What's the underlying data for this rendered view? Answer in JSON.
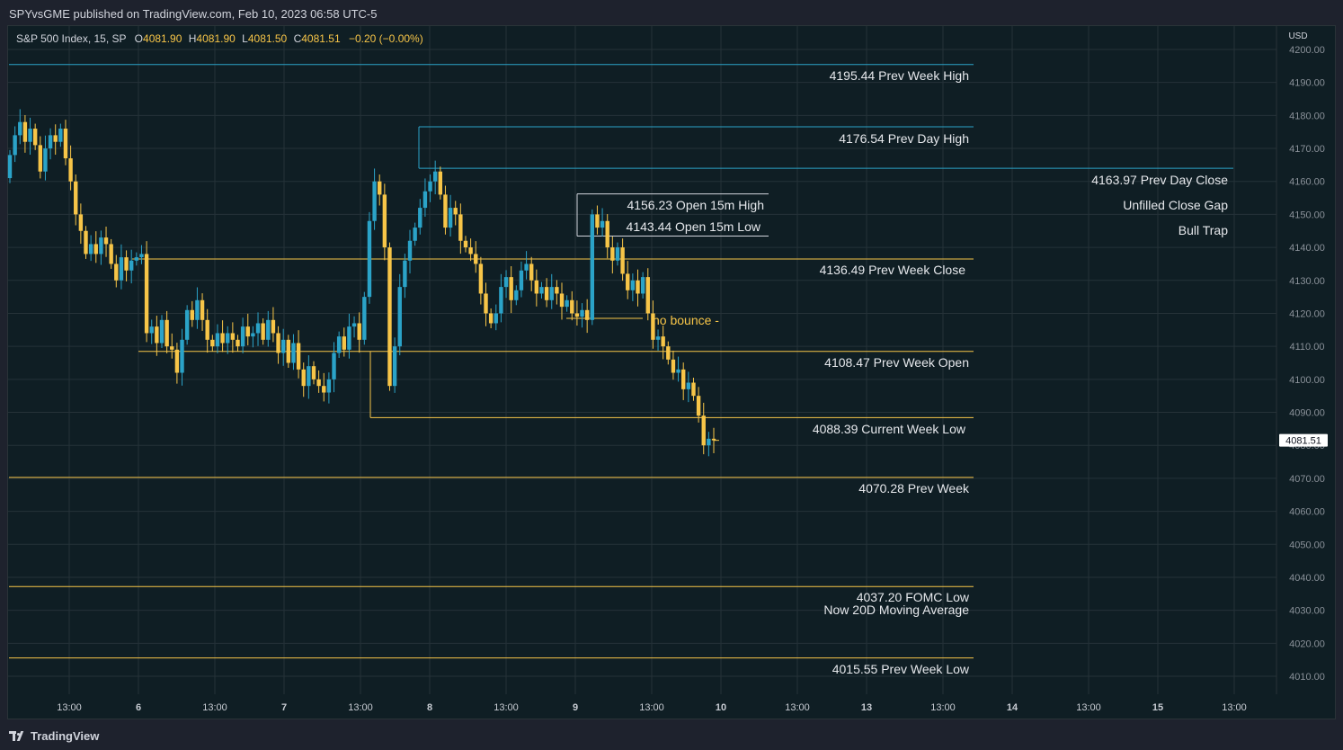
{
  "header": {
    "published": "SPYvsGME published on TradingView.com, Feb 10, 2023 06:58 UTC-5"
  },
  "legend": {
    "symbol": "S&P 500 Index, 15, SP",
    "o_label": "O",
    "o_value": "4081.90",
    "h_label": "H",
    "h_value": "4081.90",
    "l_label": "L",
    "l_value": "4081.50",
    "c_label": "C",
    "c_value": "4081.51",
    "change": "−0.20 (−0.00%)"
  },
  "footer": {
    "brand": "TradingView"
  },
  "colors": {
    "up": "#2ba3c8",
    "down": "#f7c548",
    "yellow_line": "#f7c548",
    "blue_line": "#2ba3c8",
    "grid": "#253238"
  },
  "chart_data": {
    "type": "candlestick",
    "currency": "USD",
    "last_price": "4081.51",
    "ylim": [
      4003,
      4202
    ],
    "y_ticks": [
      "4200.00",
      "4190.00",
      "4180.00",
      "4170.00",
      "4160.00",
      "4150.00",
      "4140.00",
      "4130.00",
      "4120.00",
      "4110.00",
      "4100.00",
      "4090.00",
      "4080.00",
      "4070.00",
      "4060.00",
      "4050.00",
      "4040.00",
      "4030.00",
      "4020.00",
      "4010.00"
    ],
    "x_ticks": [
      "13:00",
      "6",
      "13:00",
      "7",
      "13:00",
      "8",
      "13:00",
      "9",
      "13:00",
      "10",
      "13:00",
      "13",
      "13:00",
      "14",
      "13:00",
      "15",
      "13:00"
    ],
    "levels": [
      {
        "price": 4195.44,
        "label": "4195.44 Prev Week High",
        "color": "blue"
      },
      {
        "price": 4176.54,
        "label": "4176.54 Prev Day High",
        "color": "blue"
      },
      {
        "price": 4163.97,
        "label": "4163.97 Prev Day Close",
        "color": "blue"
      },
      {
        "price": 4156.23,
        "label": "4156.23 Open 15m High",
        "color": "white"
      },
      {
        "price": 4143.44,
        "label": "4143.44 Open 15m Low",
        "color": "white"
      },
      {
        "price": 4136.49,
        "label": "4136.49 Prev Week Close",
        "color": "yellow"
      },
      {
        "price": 4108.47,
        "label": "4108.47 Prev Week Open",
        "color": "yellow"
      },
      {
        "price": 4088.39,
        "label": "4088.39 Current Week Low",
        "color": "yellow"
      },
      {
        "price": 4070.28,
        "label": "4070.28 Prev Week",
        "color": "yellow"
      },
      {
        "price": 4037.2,
        "label": "4037.20 FOMC Low",
        "color": "yellow"
      },
      {
        "price": 4015.55,
        "label": "4015.55 Prev Week Low",
        "color": "yellow"
      }
    ],
    "annotations": [
      "Unfilled Close Gap",
      "Bull Trap",
      "no bounce -",
      "Now 20D Moving Average"
    ],
    "closes": [
      4168,
      4174,
      4178,
      4172,
      4176,
      4171,
      4163,
      4170,
      4174,
      4172,
      4176,
      4167,
      4160,
      4150,
      4145,
      4138,
      4141,
      4138,
      4143,
      4141,
      4135,
      4130,
      4137,
      4133,
      4136,
      4137,
      4138,
      4114,
      4116,
      4111,
      4118,
      4110,
      4109,
      4102,
      4112,
      4121,
      4118,
      4124,
      4118,
      4112,
      4110,
      4114,
      4111,
      4114,
      4112,
      4110,
      4116,
      4113,
      4114,
      4117,
      4112,
      4118,
      4114,
      4108,
      4112,
      4105,
      4111,
      4103,
      4098,
      4104,
      4100,
      4098,
      4096,
      4100,
      4108,
      4113,
      4109,
      4116,
      4117,
      4112,
      4125,
      4148,
      4160,
      4156,
      4140,
      4098,
      4110,
      4128,
      4136,
      4142,
      4146,
      4152,
      4157,
      4160,
      4163,
      4156,
      4146,
      4152,
      4150,
      4142,
      4140,
      4138,
      4135,
      4126,
      4120,
      4117,
      4120,
      4128,
      4131,
      4124,
      4127,
      4133,
      4135,
      4130,
      4126,
      4128,
      4124,
      4128,
      4126,
      4122,
      4124,
      4120,
      4119,
      4121,
      4118,
      4150,
      4146,
      4148,
      4140,
      4136,
      4140,
      4132,
      4127,
      4130,
      4126,
      4131,
      4120,
      4112,
      4113,
      4110,
      4106,
      4102,
      4103,
      4097,
      4099,
      4095,
      4089,
      4080,
      4082,
      4081.51
    ]
  }
}
